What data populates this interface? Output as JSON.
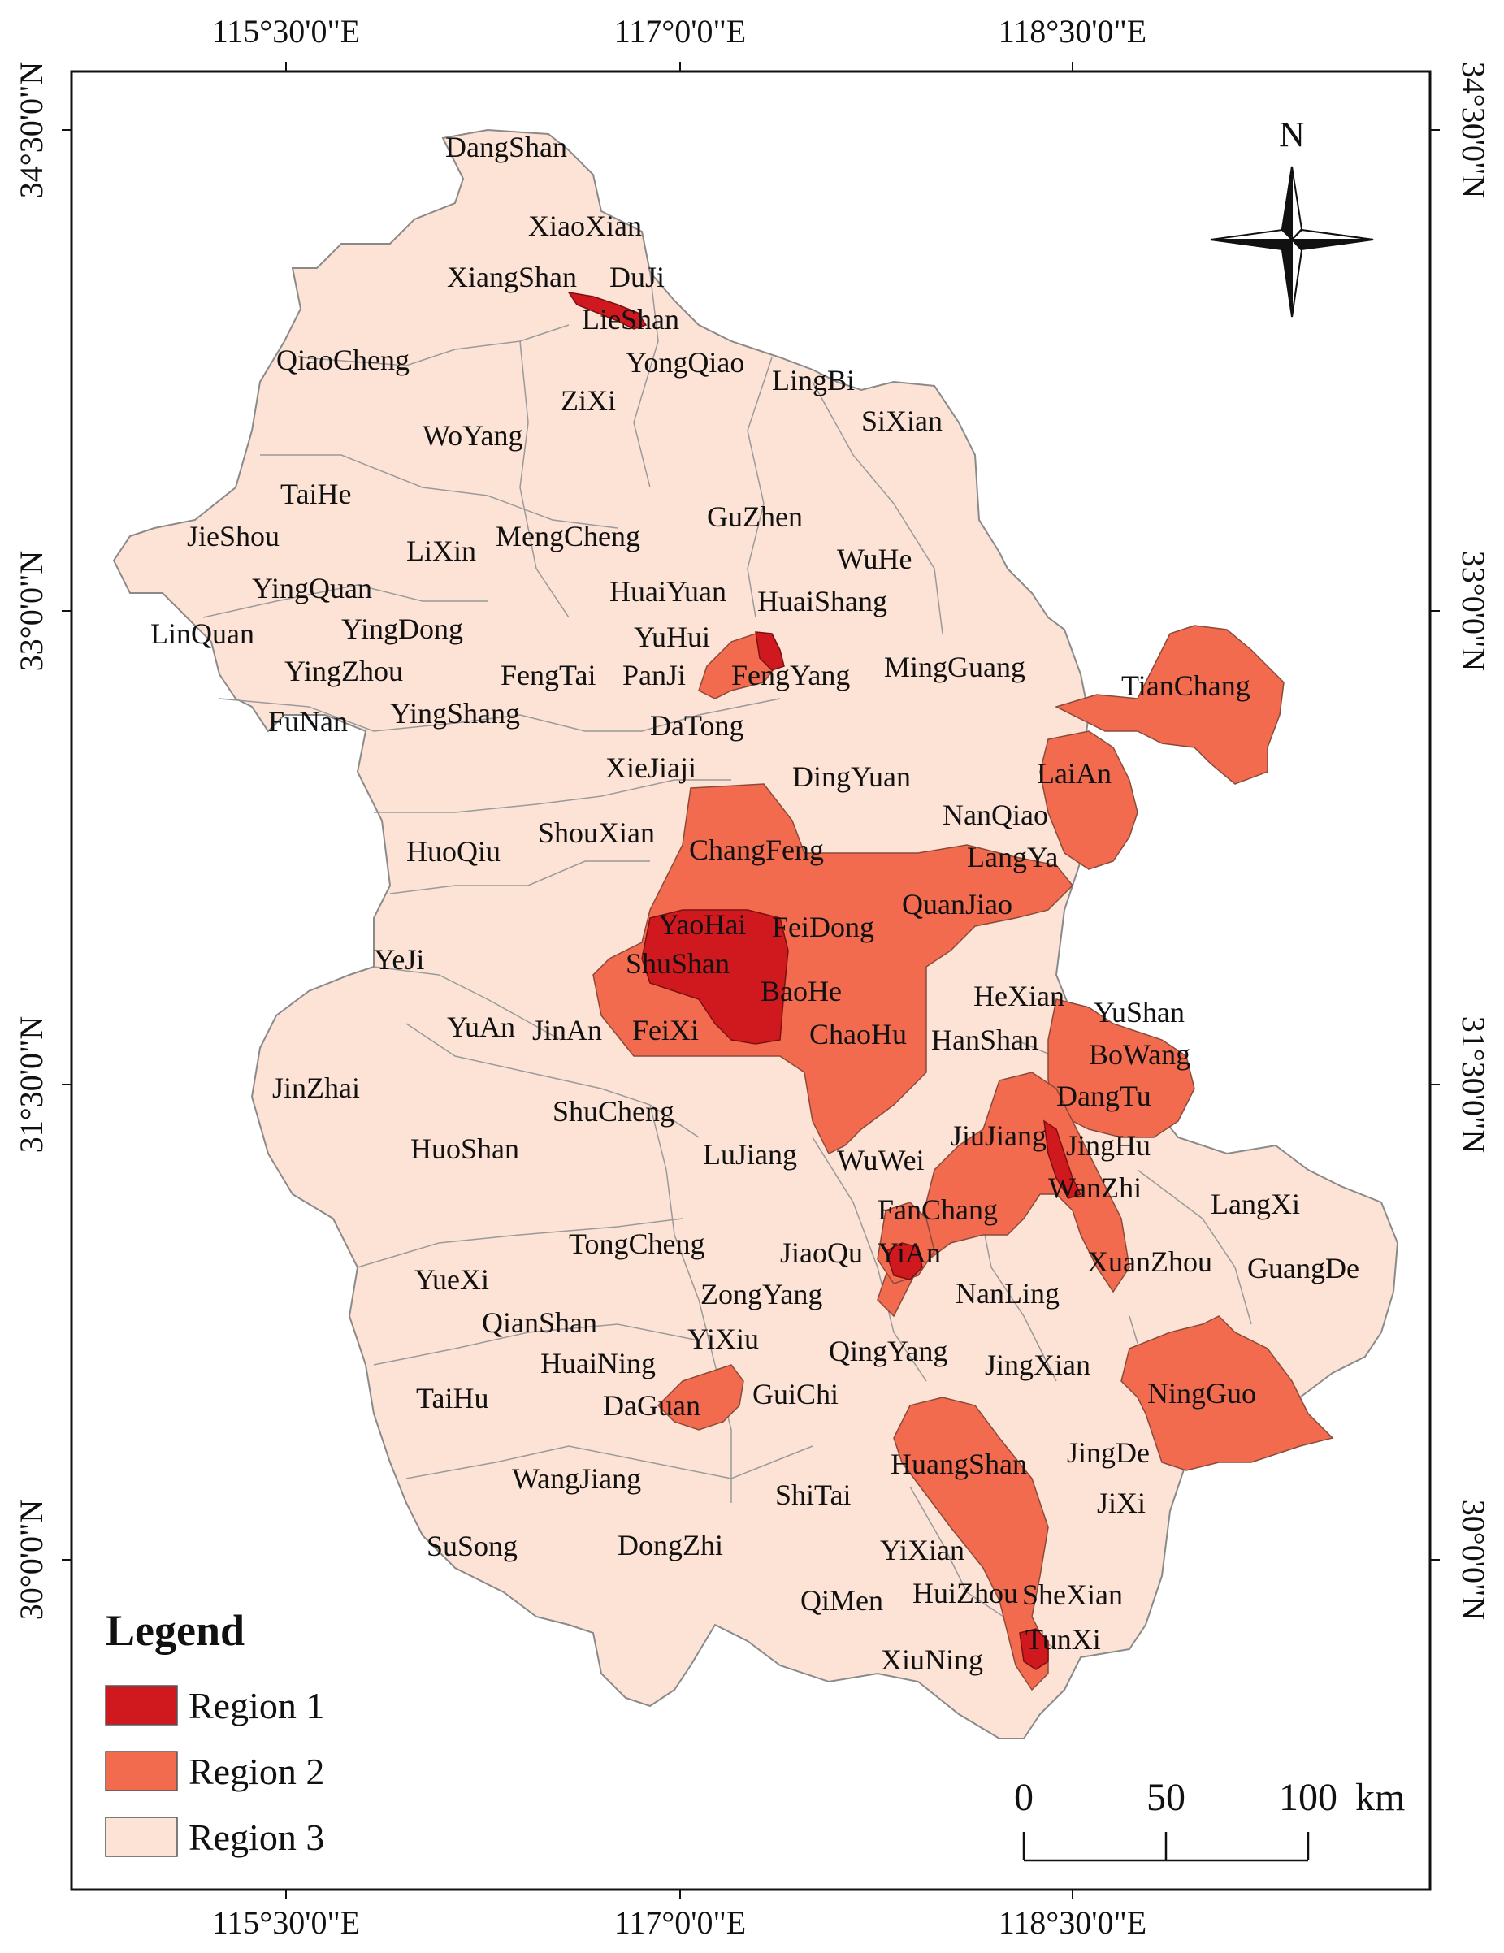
{
  "colors": {
    "region1": "#d0191f",
    "region2": "#f26b4f",
    "region3": "#fde2d6",
    "border": "#8a8a8a",
    "frame": "#111111"
  },
  "grid": {
    "lon_labels": [
      "115°30'0\"E",
      "117°0'0\"E",
      "118°30'0\"E"
    ],
    "lat_labels": [
      "34°30'0\"N",
      "33°0'0\"N",
      "31°30'0\"N",
      "30°0'0\"N"
    ]
  },
  "north_arrow": {
    "label": "N",
    "icon": "compass-rose-icon"
  },
  "legend": {
    "title": "Legend",
    "items": [
      {
        "label": "Region 1",
        "color": "#d0191f"
      },
      {
        "label": "Region 2",
        "color": "#f26b4f"
      },
      {
        "label": "Region 3",
        "color": "#fde2d6"
      }
    ]
  },
  "scale_bar": {
    "ticks": [
      "0",
      "50",
      "100"
    ],
    "unit": "km"
  },
  "labels": [
    "DangShan",
    "XiaoXian",
    "XiangShan",
    "DuJi",
    "LieShan",
    "QiaoCheng",
    "YongQiao",
    "LingBi",
    "ZiXi",
    "SiXian",
    "WoYang",
    "TaiHe",
    "JieShou",
    "GuZhen",
    "LiXin",
    "MengCheng",
    "WuHe",
    "YingQuan",
    "HuaiYuan",
    "HuaiShang",
    "LinQuan",
    "YingDong",
    "YuHui",
    "YingZhou",
    "FengTai",
    "PanJi",
    "FengYang",
    "MingGuang",
    "TianChang",
    "FuNan",
    "YingShang",
    "DaTong",
    "XieJiaji",
    "DingYuan",
    "LaiAn",
    "NanQiao",
    "HuoQiu",
    "ShouXian",
    "ChangFeng",
    "LangYa",
    "QuanJiao",
    "YaoHai",
    "FeiDong",
    "YeJi",
    "ShuShan",
    "BaoHe",
    "HeXian",
    "YuShan",
    "YuAn",
    "JinAn",
    "FeiXi",
    "ChaoHu",
    "HanShan",
    "BoWang",
    "JinZhai",
    "DangTu",
    "ShuCheng",
    "JiuJiang",
    "JingHu",
    "HuoShan",
    "LuJiang",
    "WuWei",
    "WanZhi",
    "LangXi",
    "FanChang",
    "TongCheng",
    "JiaoQu",
    "YiAn",
    "XuanZhou",
    "GuangDe",
    "YueXi",
    "ZongYang",
    "NanLing",
    "QianShan",
    "YiXiu",
    "HuaiNing",
    "QingYang",
    "JingXian",
    "NingGuo",
    "TaiHu",
    "DaGuan",
    "GuiChi",
    "HuangShan",
    "JingDe",
    "WangJiang",
    "ShiTai",
    "JiXi",
    "SuSong",
    "DongZhi",
    "YiXian",
    "QiMen",
    "HuiZhou",
    "SheXian",
    "TunXi",
    "XiuNing"
  ]
}
